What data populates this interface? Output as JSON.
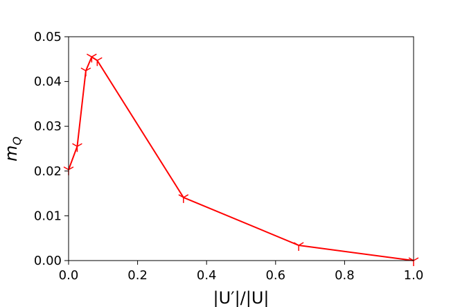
{
  "chart_data": {
    "type": "line",
    "xlabel": "|U′|/|U|",
    "ylabel": {
      "base": "m",
      "sub": "Q"
    },
    "x": [
      0,
      0.025,
      0.05,
      0.067,
      0.083,
      0.333,
      0.667,
      1.0
    ],
    "series": [
      {
        "color": "#ff0000",
        "marker": "tri_down",
        "values": [
          0.0203,
          0.0255,
          0.0424,
          0.0455,
          0.0447,
          0.0141,
          0.0034,
          0.0
        ]
      }
    ],
    "xlim": [
      0,
      1
    ],
    "ylim": [
      0,
      0.05
    ],
    "xticks": [
      {
        "value": 0,
        "label": "0.0"
      },
      {
        "value": 0.2,
        "label": "0.2"
      },
      {
        "value": 0.4,
        "label": "0.4"
      },
      {
        "value": 0.6,
        "label": "0.6"
      },
      {
        "value": 0.8,
        "label": "0.8"
      },
      {
        "value": 1,
        "label": "1.0"
      }
    ],
    "yticks": [
      {
        "value": 0,
        "label": "0.00"
      },
      {
        "value": 0.01,
        "label": "0.01"
      },
      {
        "value": 0.02,
        "label": "0.02"
      },
      {
        "value": 0.03,
        "label": "0.03"
      },
      {
        "value": 0.04,
        "label": "0.04"
      },
      {
        "value": 0.05,
        "label": "0.05"
      }
    ],
    "grid": false
  }
}
